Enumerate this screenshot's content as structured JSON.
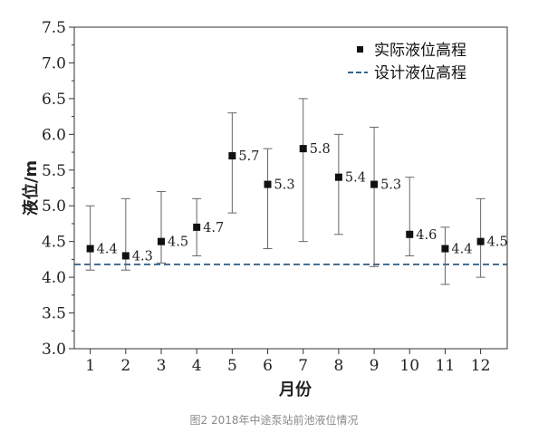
{
  "caption": "图2 2018年中途泵站前池液位情况",
  "chart_data": {
    "type": "scatter",
    "xlabel": "月份",
    "ylabel": "液位/m",
    "x": [
      1,
      2,
      3,
      4,
      5,
      6,
      7,
      8,
      9,
      10,
      11,
      12
    ],
    "xticks": [
      "1",
      "2",
      "3",
      "4",
      "5",
      "6",
      "7",
      "8",
      "9",
      "10",
      "11",
      "12"
    ],
    "xlim": [
      0.55,
      12.75
    ],
    "ylim": [
      3.0,
      7.5
    ],
    "yticks": [
      "3.0",
      "3.5",
      "4.0",
      "4.5",
      "5.0",
      "5.5",
      "6.0",
      "6.5",
      "7.0",
      "7.5"
    ],
    "series": [
      {
        "name": "实际液位高程",
        "marker": "square",
        "color": "#111111",
        "values": [
          4.4,
          4.3,
          4.5,
          4.7,
          5.7,
          5.3,
          5.8,
          5.4,
          5.3,
          4.6,
          4.4,
          4.5
        ],
        "labels": [
          "4.4",
          "4.3",
          "4.5",
          "4.7",
          "5.7",
          "5.3",
          "5.8",
          "5.4",
          "5.3",
          "4.6",
          "4.4",
          "4.5"
        ],
        "error_low": [
          4.1,
          4.1,
          4.2,
          4.3,
          4.9,
          4.4,
          4.5,
          4.6,
          4.15,
          4.3,
          3.9,
          4.0
        ],
        "error_high": [
          5.0,
          5.1,
          5.2,
          5.1,
          6.3,
          5.8,
          6.5,
          6.0,
          6.1,
          5.4,
          4.7,
          5.1
        ]
      },
      {
        "name": "设计液位高程",
        "style": "dashed",
        "color": "#1f4e79",
        "value": 4.18
      }
    ],
    "legend": "top-right"
  }
}
